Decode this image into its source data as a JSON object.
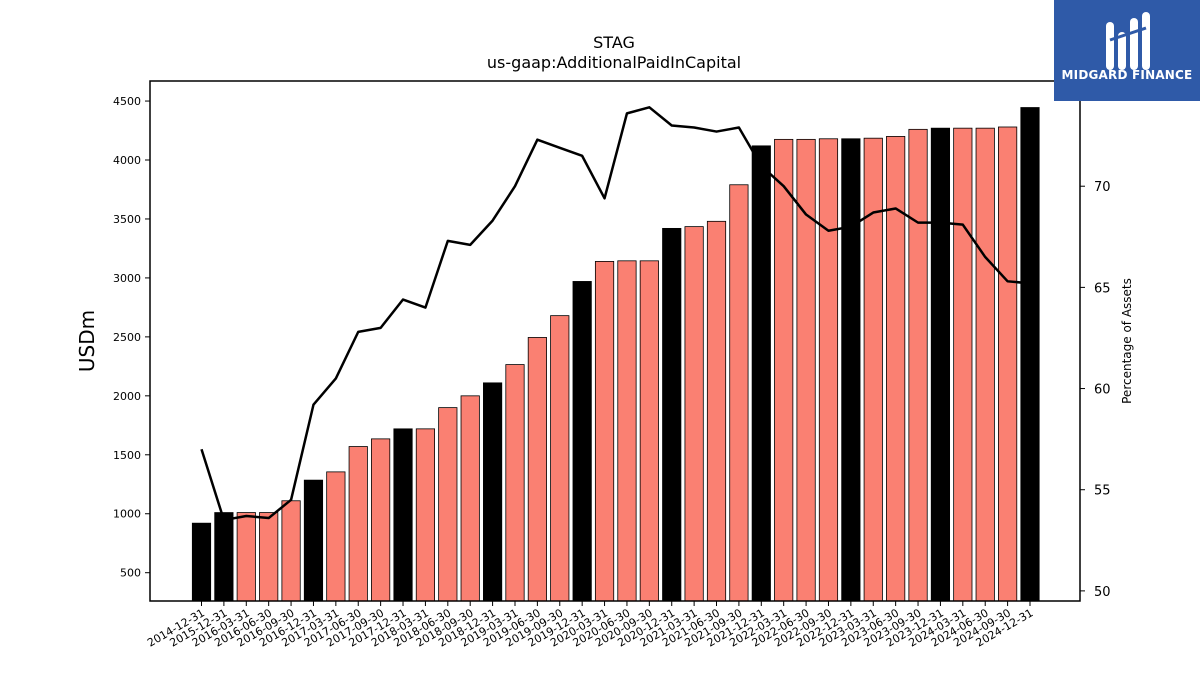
{
  "brand": {
    "name": "MIDGARD FINANCE",
    "logo_color": "#2f5aa8"
  },
  "chart_data": {
    "type": "bar",
    "title": "STAG",
    "subtitle": "us-gaap:AdditionalPaidInCapital",
    "ylabel": "USDm",
    "y2label": "Percentage of Assets",
    "ylim": [
      260,
      4670
    ],
    "y2lim": [
      49.5,
      75.2
    ],
    "yticks": [
      500,
      1000,
      1500,
      2000,
      2500,
      3000,
      3500,
      4000,
      4500
    ],
    "y2ticks": [
      50,
      55,
      60,
      65,
      70
    ],
    "colors": {
      "annual": "#000000",
      "quarter": "#fa8072",
      "line": "#000000"
    },
    "categories": [
      "2014-12-31",
      "2015-12-31",
      "2016-03-31",
      "2016-06-30",
      "2016-09-30",
      "2016-12-31",
      "2017-03-31",
      "2017-06-30",
      "2017-09-30",
      "2017-12-31",
      "2018-03-31",
      "2018-06-30",
      "2018-09-30",
      "2018-12-31",
      "2019-03-31",
      "2019-06-30",
      "2019-09-30",
      "2019-12-31",
      "2020-03-31",
      "2020-06-30",
      "2020-09-30",
      "2020-12-31",
      "2021-03-31",
      "2021-06-30",
      "2021-09-30",
      "2021-12-31",
      "2022-03-31",
      "2022-06-30",
      "2022-09-30",
      "2022-12-31",
      "2023-03-31",
      "2023-06-30",
      "2023-09-30",
      "2023-12-31",
      "2024-03-31",
      "2024-06-30",
      "2024-09-30",
      "2024-12-31"
    ],
    "values": [
      920,
      1010,
      1010,
      1010,
      1110,
      1285,
      1355,
      1570,
      1635,
      1720,
      1720,
      1900,
      2000,
      2110,
      2265,
      2495,
      2680,
      2970,
      3140,
      3145,
      3145,
      3420,
      3435,
      3480,
      3790,
      4120,
      4175,
      4175,
      4180,
      4180,
      4185,
      4200,
      4260,
      4270,
      4270,
      4270,
      4280,
      4445
    ],
    "annual": [
      true,
      true,
      false,
      false,
      false,
      true,
      false,
      false,
      false,
      true,
      false,
      false,
      false,
      true,
      false,
      false,
      false,
      true,
      false,
      false,
      false,
      true,
      false,
      false,
      false,
      true,
      false,
      false,
      false,
      true,
      false,
      false,
      false,
      true,
      false,
      false,
      false,
      true
    ],
    "pct_assets": [
      57.0,
      53.5,
      53.7,
      53.6,
      54.5,
      59.2,
      60.5,
      62.8,
      63.0,
      64.4,
      64.0,
      67.3,
      67.1,
      68.3,
      70.0,
      72.3,
      71.9,
      71.5,
      69.4,
      73.6,
      73.9,
      73.0,
      72.9,
      72.7,
      72.9,
      71.0,
      70.0,
      68.6,
      67.8,
      68.0,
      68.7,
      68.9,
      68.2,
      68.2,
      68.1,
      66.5,
      65.3,
      65.2
    ]
  }
}
